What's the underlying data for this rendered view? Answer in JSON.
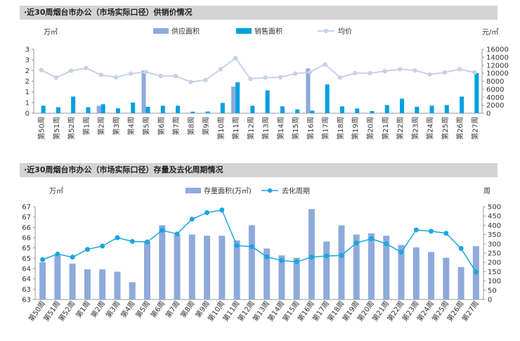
{
  "chart_data": [
    {
      "type": "bar",
      "title": "·近30周烟台市办公（市场实际口径）供销价情况",
      "left_unit": "万㎡",
      "right_unit": "元/㎡",
      "categories": [
        "第50周",
        "第51周",
        "第52周",
        "第1周",
        "第2周",
        "第3周",
        "第4周",
        "第5周",
        "第6周",
        "第7周",
        "第8周",
        "第9周",
        "第10周",
        "第11周",
        "第12周",
        "第13周",
        "第14周",
        "第15周",
        "第16周",
        "第17周",
        "第18周",
        "第19周",
        "第20周",
        "第21周",
        "第22周",
        "第23周",
        "第24周",
        "第25周",
        "第26周",
        "第27周"
      ],
      "series": [
        {
          "name": "供应面积",
          "axis": "left",
          "mark": "bar",
          "color": "#8eaadb",
          "values": [
            0,
            0,
            0,
            0,
            0.35,
            0,
            0,
            2.0,
            0,
            0,
            0,
            0,
            0,
            1.25,
            0,
            0,
            0,
            0,
            2.1,
            0,
            0,
            0,
            0,
            0,
            0,
            0,
            0,
            0,
            0,
            0
          ]
        },
        {
          "name": "销售面积",
          "axis": "left",
          "mark": "bar",
          "color": "#00a0e0",
          "values": [
            0.35,
            0.28,
            0.78,
            0.28,
            0.42,
            0.23,
            0.5,
            0.3,
            0.35,
            0.35,
            0.07,
            0.08,
            0.48,
            1.45,
            0.35,
            1.07,
            0.32,
            0.18,
            0.12,
            1.35,
            0.32,
            0.22,
            0.1,
            0.38,
            0.68,
            0.3,
            0.35,
            0.38,
            0.78,
            1.88
          ]
        },
        {
          "name": "均价",
          "axis": "right",
          "mark": "line",
          "color": "#c8d2e4",
          "values": [
            10800,
            8900,
            10600,
            11300,
            9600,
            9000,
            9900,
            10300,
            9300,
            9300,
            7800,
            8300,
            11000,
            13800,
            8600,
            8900,
            9000,
            9900,
            10300,
            12200,
            8900,
            10000,
            10000,
            10500,
            11000,
            10700,
            9700,
            10200,
            11000,
            10200
          ]
        }
      ],
      "ylim_left": [
        0,
        3
      ],
      "yticks_left": [
        "0",
        "1",
        "1",
        "2",
        "2",
        "3",
        "3"
      ],
      "ylim_right": [
        0,
        16000
      ],
      "yticks_right": [
        "0",
        "2000",
        "4000",
        "6000",
        "8000",
        "10000",
        "12000",
        "14000",
        "16000"
      ]
    },
    {
      "type": "bar",
      "title": "·近30周烟台市办公（市场实际口径）存量及去化周期情况",
      "left_unit": "万㎡",
      "right_unit": "周",
      "categories": [
        "第50周",
        "第51周",
        "第52周",
        "第1周",
        "第2周",
        "第3周",
        "第4周",
        "第5周",
        "第6周",
        "第7周",
        "第8周",
        "第9周",
        "第10周",
        "第11周",
        "第12周",
        "第13周",
        "第14周",
        "第15周",
        "第16周",
        "第17周",
        "第18周",
        "第19周",
        "第20周",
        "第21周",
        "第22周",
        "第23周",
        "第24周",
        "第25周",
        "第26周",
        "第27周"
      ],
      "series": [
        {
          "name": "存量面积(万㎡)",
          "axis": "left",
          "mark": "bar",
          "color": "#8eaadb",
          "values": [
            64.6,
            64.9,
            64.55,
            64.3,
            64.3,
            64.2,
            63.75,
            65.5,
            66.2,
            65.8,
            65.8,
            65.75,
            65.75,
            65.55,
            66.2,
            65.2,
            64.9,
            64.8,
            66.9,
            65.5,
            66.2,
            65.8,
            65.85,
            65.75,
            65.35,
            65.25,
            65.05,
            64.8,
            64.4,
            65.3
          ]
        },
        {
          "name": "去化周期",
          "axis": "right",
          "mark": "line",
          "color": "#1aa6e0",
          "values": [
            215,
            245,
            228,
            270,
            288,
            333,
            313,
            310,
            373,
            353,
            433,
            468,
            482,
            290,
            285,
            230,
            210,
            203,
            228,
            235,
            237,
            305,
            327,
            300,
            255,
            375,
            368,
            357,
            275,
            148
          ]
        }
      ],
      "ylim_left": [
        63,
        67
      ],
      "yticks_left": [
        "63",
        "63",
        "64",
        "64",
        "65",
        "65",
        "66",
        "66",
        "67",
        "67"
      ],
      "ylim_right": [
        0,
        500
      ],
      "yticks_right": [
        "0",
        "50",
        "100",
        "150",
        "200",
        "250",
        "300",
        "350",
        "400",
        "450",
        "500"
      ]
    }
  ]
}
